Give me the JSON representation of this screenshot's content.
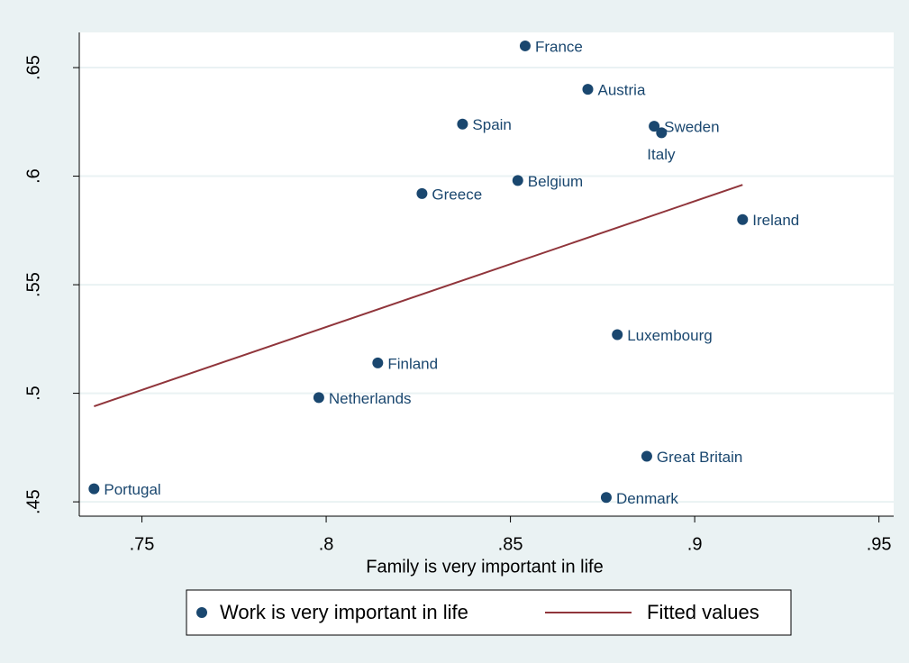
{
  "chart_data": {
    "type": "scatter",
    "xlabel": "Family is very important in life",
    "xlim": [
      0.733,
      0.954
    ],
    "ylim": [
      0.4434,
      0.6662
    ],
    "xticks": [
      {
        "value": 0.75,
        "label": ".75"
      },
      {
        "value": 0.8,
        "label": ".8"
      },
      {
        "value": 0.85,
        "label": ".85"
      },
      {
        "value": 0.9,
        "label": ".9"
      },
      {
        "value": 0.95,
        "label": ".95"
      }
    ],
    "yticks": [
      {
        "value": 0.45,
        "label": ".45"
      },
      {
        "value": 0.5,
        "label": ".5"
      },
      {
        "value": 0.55,
        "label": ".55"
      },
      {
        "value": 0.6,
        "label": ".6"
      },
      {
        "value": 0.65,
        "label": ".65"
      }
    ],
    "grid": true,
    "legend": "bottom",
    "series": [
      {
        "name": "Work is very important in life",
        "type": "scatter",
        "color": "#1a476f",
        "labels": [
          "France",
          "Austria",
          "Spain",
          "Sweden",
          "Italy",
          "Belgium",
          "Greece",
          "Ireland",
          "Luxembourg",
          "Finland",
          "Netherlands",
          "Great Britain",
          "Portugal",
          "Denmark"
        ],
        "x": [
          0.854,
          0.871,
          0.837,
          0.889,
          0.891,
          0.852,
          0.826,
          0.913,
          0.879,
          0.814,
          0.798,
          0.887,
          0.737,
          0.876
        ],
        "values": [
          0.66,
          0.64,
          0.624,
          0.623,
          0.62,
          0.598,
          0.592,
          0.58,
          0.527,
          0.514,
          0.498,
          0.471,
          0.456,
          0.452
        ]
      },
      {
        "name": "Fitted values",
        "type": "line",
        "color": "#90353b",
        "x": [
          0.737,
          0.913
        ],
        "values": [
          0.494,
          0.596
        ]
      }
    ]
  }
}
